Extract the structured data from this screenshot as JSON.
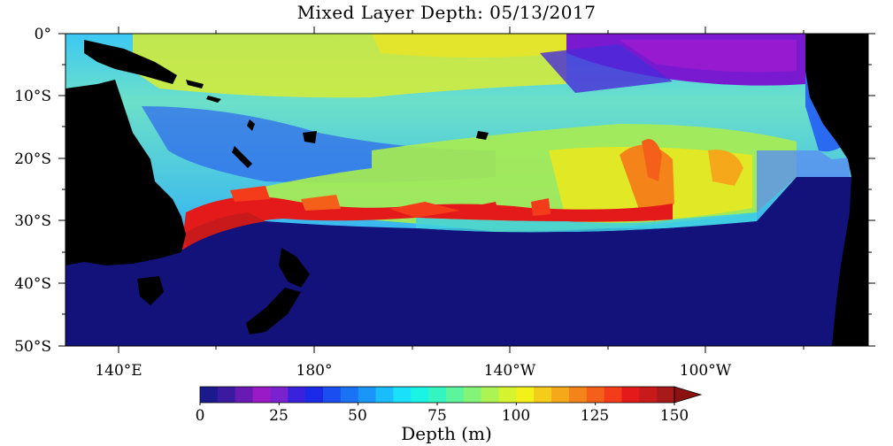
{
  "title": "Mixed Layer Depth: 05/13/2017",
  "lat_labels": [
    "0°",
    "10°S",
    "20°S",
    "30°S",
    "40°S",
    "50°S"
  ],
  "lon_labels": [
    "140°E",
    "180°",
    "140°W",
    "100°W"
  ],
  "colorbar": {
    "label": "Depth (m)",
    "tick_labels": [
      "0",
      "25",
      "50",
      "75",
      "100",
      "125",
      "150"
    ],
    "min": 0,
    "max": 150,
    "extend": "max",
    "colors": [
      "#1a1a8c",
      "#3a1aa0",
      "#6a1ab4",
      "#9a1ac8",
      "#7a22d0",
      "#3a22dc",
      "#1a2ae6",
      "#1a4ef0",
      "#1a72f4",
      "#1a96f8",
      "#1abcfc",
      "#1ae0fc",
      "#1af4e4",
      "#34f4c0",
      "#5cf49c",
      "#84f478",
      "#acf454",
      "#d4f430",
      "#f4f01a",
      "#f4cc1a",
      "#f4a81a",
      "#f4841a",
      "#f4601a",
      "#f43c1a",
      "#e41a1a",
      "#c81a1a",
      "#a81a1a"
    ],
    "extend_color": "#8c1212"
  },
  "map_colors": {
    "land": "#000000",
    "no_data": "#ffffff",
    "deep_south": "#12127a"
  }
}
